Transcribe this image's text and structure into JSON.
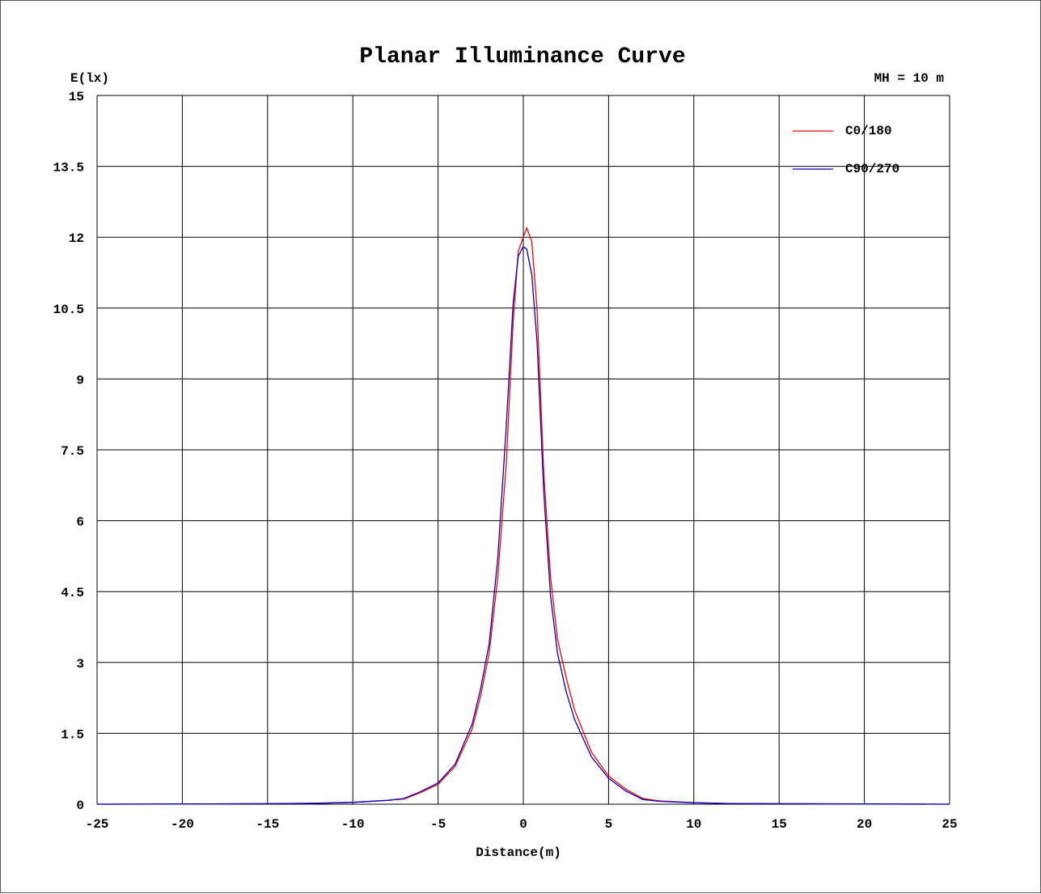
{
  "chart_data": {
    "type": "line",
    "title": "Planar Illuminance Curve",
    "subtitle": "MH = 10 m",
    "xlabel": "Distance(m)",
    "ylabel": "E(lx)",
    "xlim": [
      -25,
      25
    ],
    "ylim": [
      0,
      15
    ],
    "xticks": [
      -25,
      -20,
      -15,
      -10,
      -5,
      0,
      5,
      10,
      15,
      20,
      25
    ],
    "yticks": [
      "0",
      "1.5",
      "3",
      "4.5",
      "6",
      "7.5",
      "9",
      "10.5",
      "12",
      "13.5",
      "15"
    ],
    "grid": true,
    "legend": "top-right",
    "series": [
      {
        "name": "C0/180",
        "color": "#ff0000",
        "points": [
          [
            -25,
            0
          ],
          [
            -20,
            0.005
          ],
          [
            -15,
            0.01
          ],
          [
            -12,
            0.02
          ],
          [
            -10,
            0.04
          ],
          [
            -8,
            0.08
          ],
          [
            -7,
            0.11
          ],
          [
            -6,
            0.25
          ],
          [
            -5,
            0.42
          ],
          [
            -4,
            0.8
          ],
          [
            -3,
            1.6
          ],
          [
            -2.5,
            2.3
          ],
          [
            -2,
            3.2
          ],
          [
            -1.5,
            4.8
          ],
          [
            -1,
            7.2
          ],
          [
            -0.6,
            10.2
          ],
          [
            -0.3,
            11.7
          ],
          [
            0,
            12.0
          ],
          [
            0.2,
            12.2
          ],
          [
            0.5,
            11.9
          ],
          [
            0.8,
            10.5
          ],
          [
            1.2,
            7.0
          ],
          [
            1.6,
            4.8
          ],
          [
            2,
            3.5
          ],
          [
            2.5,
            2.7
          ],
          [
            3,
            2.0
          ],
          [
            4,
            1.1
          ],
          [
            5,
            0.6
          ],
          [
            6,
            0.32
          ],
          [
            7,
            0.12
          ],
          [
            8,
            0.07
          ],
          [
            10,
            0.03
          ],
          [
            12,
            0.015
          ],
          [
            15,
            0.01
          ],
          [
            20,
            0.005
          ],
          [
            25,
            0
          ]
        ]
      },
      {
        "name": "C90/270",
        "color": "#0000cc",
        "points": [
          [
            -25,
            0
          ],
          [
            -20,
            0.005
          ],
          [
            -15,
            0.01
          ],
          [
            -12,
            0.02
          ],
          [
            -10,
            0.04
          ],
          [
            -8,
            0.08
          ],
          [
            -7,
            0.12
          ],
          [
            -6,
            0.27
          ],
          [
            -5,
            0.45
          ],
          [
            -4,
            0.85
          ],
          [
            -3,
            1.7
          ],
          [
            -2.5,
            2.45
          ],
          [
            -2,
            3.4
          ],
          [
            -1.5,
            5.2
          ],
          [
            -1,
            8.0
          ],
          [
            -0.6,
            10.6
          ],
          [
            -0.3,
            11.6
          ],
          [
            0,
            11.8
          ],
          [
            0.2,
            11.75
          ],
          [
            0.5,
            11.2
          ],
          [
            0.8,
            9.8
          ],
          [
            1.2,
            6.6
          ],
          [
            1.6,
            4.4
          ],
          [
            2,
            3.2
          ],
          [
            2.5,
            2.4
          ],
          [
            3,
            1.8
          ],
          [
            4,
            1.0
          ],
          [
            5,
            0.55
          ],
          [
            6,
            0.28
          ],
          [
            7,
            0.1
          ],
          [
            8,
            0.06
          ],
          [
            10,
            0.03
          ],
          [
            12,
            0.015
          ],
          [
            15,
            0.01
          ],
          [
            20,
            0.005
          ],
          [
            25,
            0
          ]
        ]
      }
    ]
  }
}
